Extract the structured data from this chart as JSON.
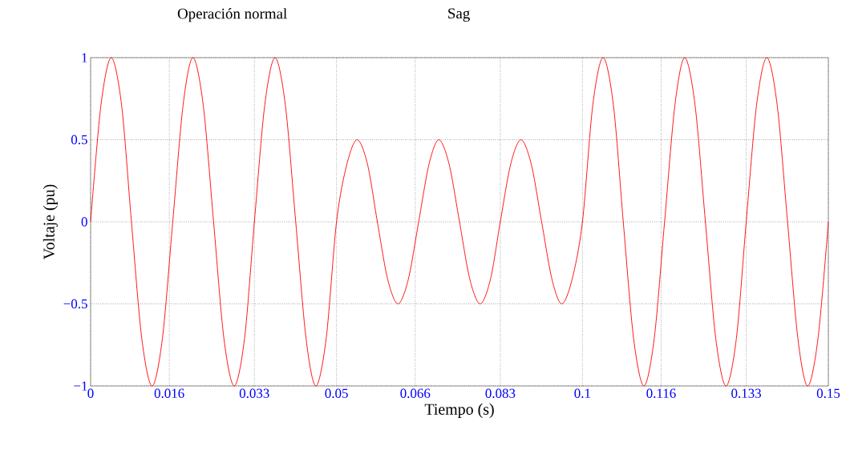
{
  "chart_data": {
    "type": "line",
    "xlabel": "Tiempo (s)",
    "ylabel": "Voltaje (pu)",
    "annotations": [
      "Operación normal",
      "Sag"
    ],
    "x": [
      0,
      0.0021,
      0.0042,
      0.0063,
      0.0083,
      0.0104,
      0.0125,
      0.0146,
      0.0167,
      0.0188,
      0.0208,
      0.0229,
      0.025,
      0.0271,
      0.0292,
      0.0313,
      0.0333,
      0.0354,
      0.0375,
      0.0396,
      0.0417,
      0.0438,
      0.0458,
      0.0479,
      0.05,
      0.0521,
      0.0542,
      0.0563,
      0.0583,
      0.0604,
      0.0625,
      0.0646,
      0.0667,
      0.0688,
      0.0708,
      0.0729,
      0.075,
      0.0771,
      0.0792,
      0.0813,
      0.0833,
      0.0854,
      0.0875,
      0.0896,
      0.0917,
      0.0938,
      0.0958,
      0.0979,
      0.1,
      0.1021,
      0.1042,
      0.1063,
      0.1083,
      0.1104,
      0.1125,
      0.1146,
      0.1167,
      0.1188,
      0.1208,
      0.1229,
      0.125,
      0.1271,
      0.1292,
      0.1313,
      0.1333,
      0.1354,
      0.1375,
      0.1396,
      0.1417,
      0.1438,
      0.1458,
      0.1479,
      0.15
    ],
    "values": [
      0,
      0.71,
      1,
      0.71,
      0,
      -0.71,
      -1,
      -0.71,
      0,
      0.71,
      1,
      0.71,
      0,
      -0.71,
      -1,
      -0.71,
      0,
      0.71,
      1,
      0.71,
      0,
      -0.71,
      -1,
      -0.71,
      0,
      0.35,
      0.5,
      0.35,
      0,
      -0.35,
      -0.5,
      -0.35,
      0,
      0.35,
      0.5,
      0.35,
      0,
      -0.35,
      -0.5,
      -0.35,
      0,
      0.35,
      0.5,
      0.35,
      0,
      -0.35,
      -0.5,
      -0.35,
      0,
      0.71,
      1,
      0.71,
      0,
      -0.71,
      -1,
      -0.71,
      0,
      0.71,
      1,
      0.71,
      0,
      -0.71,
      -1,
      -0.71,
      0,
      0.71,
      1,
      0.71,
      0,
      -0.71,
      -1,
      -0.71,
      0
    ],
    "color": "#ff0000",
    "xlim": [
      0,
      0.15
    ],
    "ylim": [
      -1,
      1
    ],
    "xticks": [
      0,
      0.016,
      {
        "value": 0.0333,
        "label": "0.033"
      },
      0.05,
      0.066,
      {
        "value": 0.0833,
        "label": "0.083"
      },
      0.1,
      0.116,
      {
        "value": 0.1333,
        "label": "0.133"
      },
      0.15
    ],
    "yticks": [
      {
        "value": -1,
        "label": "−1"
      },
      {
        "value": -0.5,
        "label": "−0.5"
      },
      0,
      0.5,
      1
    ],
    "grid": true,
    "line_style": "solid",
    "marker": "none"
  }
}
